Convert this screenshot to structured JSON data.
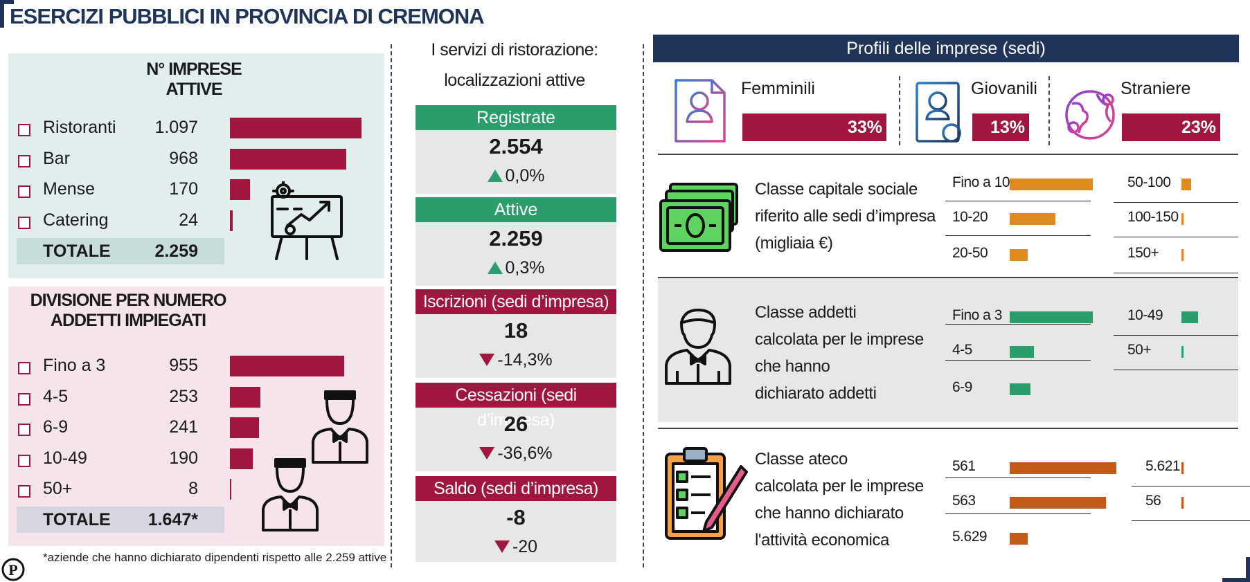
{
  "title": "ESERCIZI PUBBLICI IN PROVINCIA DI CREMONA",
  "colors": {
    "navy": "#1f3458",
    "crimson": "#a0163e",
    "green": "#2a9d6a",
    "orange": "#e0891c",
    "rust": "#c45a1a"
  },
  "left": {
    "imprese": {
      "heading_line1": "N° IMPRESE",
      "heading_line2": "ATTIVE",
      "rows": [
        {
          "label": "Ristoranti",
          "value": "1.097",
          "num": 1097
        },
        {
          "label": "Bar",
          "value": "968",
          "num": 968
        },
        {
          "label": "Mense",
          "value": "170",
          "num": 170
        },
        {
          "label": "Catering",
          "value": "24",
          "num": 24
        }
      ],
      "total_label": "TOTALE",
      "total_value": "2.259",
      "icon": "presentation-growth-icon"
    },
    "addetti": {
      "heading_line1": "DIVISIONE PER NUMERO",
      "heading_line2": "ADDETTI IMPIEGATI",
      "rows": [
        {
          "label": "Fino a 3",
          "value": "955",
          "num": 955
        },
        {
          "label": "4-5",
          "value": "253",
          "num": 253
        },
        {
          "label": "6-9",
          "value": "241",
          "num": 241
        },
        {
          "label": "10-49",
          "value": "190",
          "num": 190
        },
        {
          "label": "50+",
          "value": "8",
          "num": 8
        }
      ],
      "total_label": "TOTALE",
      "total_value": "1.647*",
      "icon": "waiter-icon"
    },
    "footnote": "*aziende che hanno dichiarato dipendenti rispetto alle 2.259 attive"
  },
  "middle": {
    "heading_line1": "I servizi di ristorazione:",
    "heading_line2": "localizzazioni attive",
    "blocks": [
      {
        "label": "Registrate",
        "value": "2.554",
        "change": "0,0%",
        "dir": "up",
        "color": "green"
      },
      {
        "label": "Attive",
        "value": "2.259",
        "change": "0,3%",
        "dir": "up",
        "color": "green"
      },
      {
        "label": "Iscrizioni (sedi d’impresa)",
        "value": "18",
        "change": "-14,3%",
        "dir": "down",
        "color": "red"
      },
      {
        "label": "Cessazioni (sedi d’impresa)",
        "value": "26",
        "change": "-36,6%",
        "dir": "down",
        "color": "red"
      },
      {
        "label": "Saldo (sedi d’impresa)",
        "value": "-8",
        "change": "-20",
        "dir": "down",
        "color": "red"
      }
    ]
  },
  "right": {
    "heading": "Profili delle imprese (sedi)",
    "profiles": [
      {
        "name": "Femminili",
        "value": "33%",
        "num": 33,
        "icon": "woman-document-icon"
      },
      {
        "name": "Giovanili",
        "value": "13%",
        "num": 13,
        "icon": "young-person-document-icon"
      },
      {
        "name": "Straniere",
        "value": "23%",
        "num": 23,
        "icon": "globe-icon"
      }
    ],
    "capitale": {
      "text": [
        "Classe capitale sociale",
        "riferito alle sedi d’impresa",
        "(migliaia €)"
      ],
      "icon": "banknote-icon",
      "left": [
        {
          "label": "Fino a 10",
          "num": 100
        },
        {
          "label": "10-20",
          "num": 55
        },
        {
          "label": "20-50",
          "num": 22
        }
      ],
      "right": [
        {
          "label": "50-100",
          "num": 12
        },
        {
          "label": "100-150",
          "num": 2
        },
        {
          "label": "150+",
          "num": 2
        }
      ]
    },
    "addetti": {
      "text": [
        "Classe addetti",
        "calcolata per le imprese",
        "che hanno",
        "dichiarato addetti"
      ],
      "icon": "employee-icon",
      "left": [
        {
          "label": "Fino a 3",
          "num": 100
        },
        {
          "label": "4-5",
          "num": 29
        },
        {
          "label": "6-9",
          "num": 25
        }
      ],
      "right": [
        {
          "label": "10-49",
          "num": 20
        },
        {
          "label": "50+",
          "num": 2
        }
      ]
    },
    "ateco": {
      "text": [
        "Classe ateco",
        "calcolata per le imprese",
        "che hanno dichiarato",
        "l'attività economica"
      ],
      "icon": "checklist-icon",
      "left": [
        {
          "label": "561",
          "num": 100
        },
        {
          "label": "563",
          "num": 90
        },
        {
          "label": "5.629",
          "num": 17
        }
      ],
      "right": [
        {
          "label": "5.621",
          "num": 2
        },
        {
          "label": "56",
          "num": 2
        }
      ]
    }
  }
}
